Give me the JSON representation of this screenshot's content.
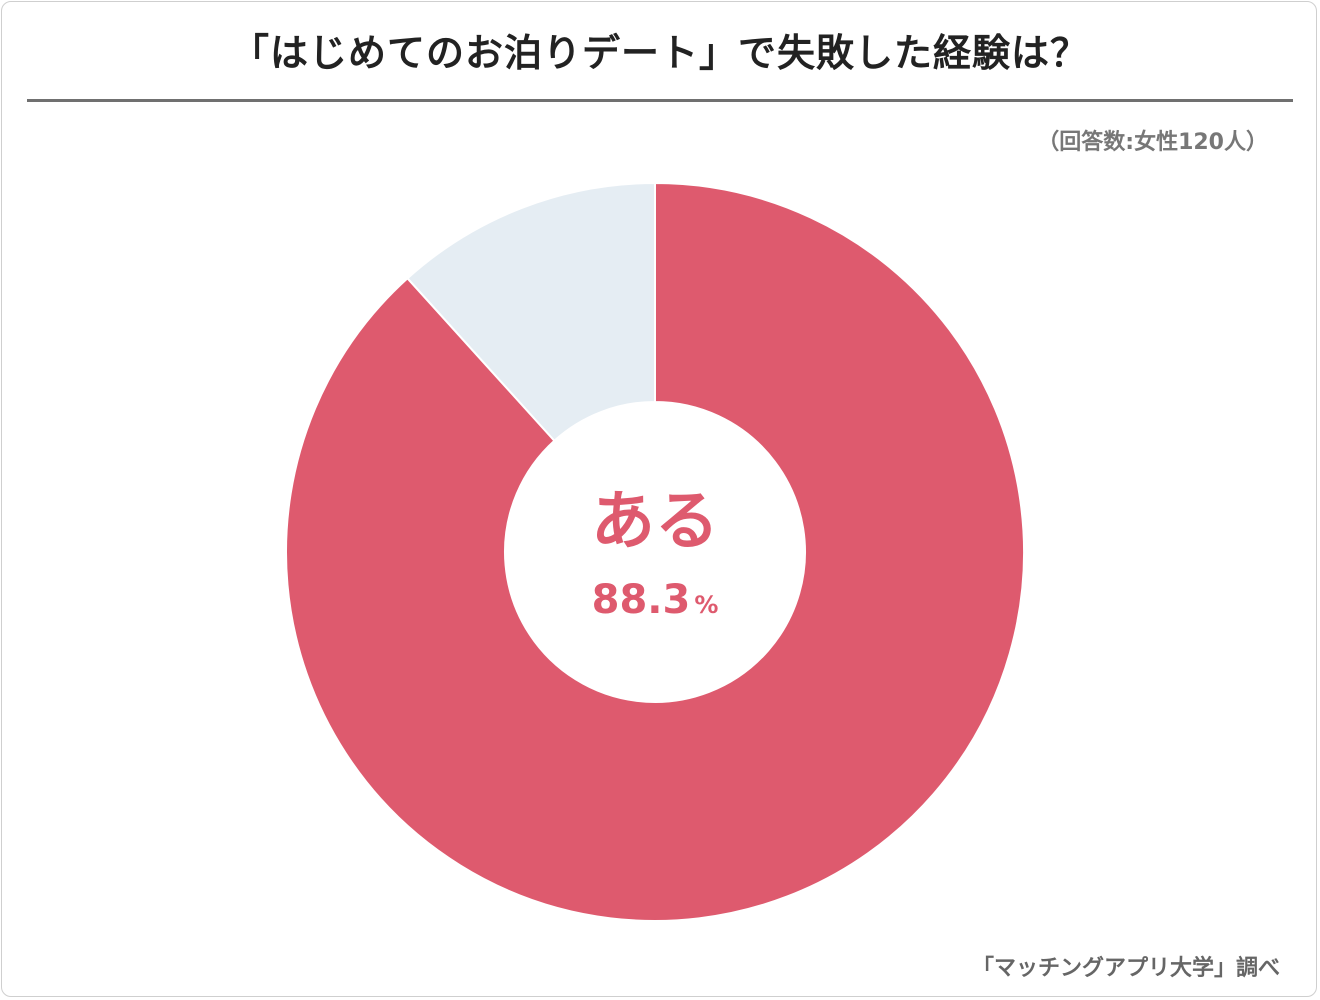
{
  "title": "「はじめてのお泊りデート」で失敗した経験は？",
  "note": "（回答数:女性120人）",
  "source": "「マッチングアプリ大学」調べ",
  "colors": {
    "primary": "#de5a6e",
    "secondary": "#e5edf3"
  },
  "chart_data": {
    "type": "pie",
    "categories": [
      "ある",
      ""
    ],
    "values": [
      88.3,
      11.7
    ],
    "unit": "%",
    "highlight": {
      "label": "ある",
      "value": "88.3",
      "unit": "%"
    }
  }
}
